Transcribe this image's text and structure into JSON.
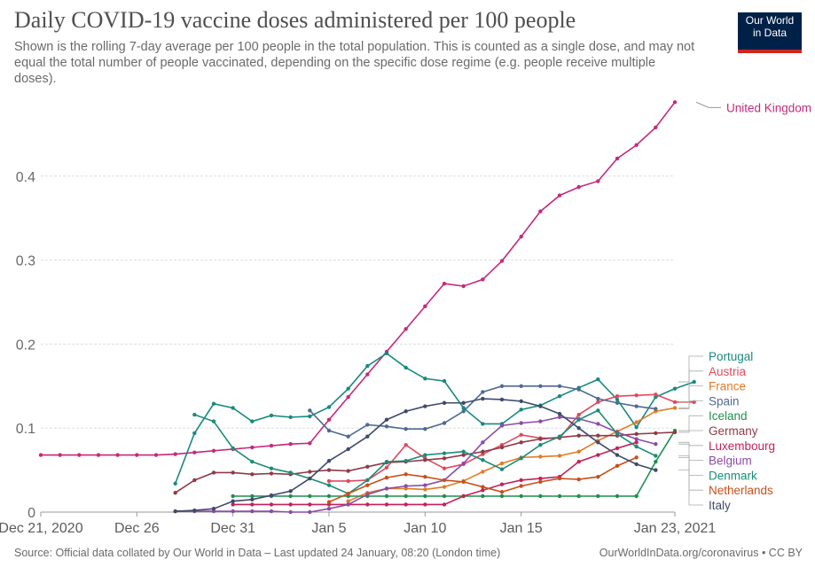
{
  "header": {
    "title": "Daily COVID-19 vaccine doses administered per 100 people",
    "subtitle": "Shown is the rolling 7-day average per 100 people in the total population. This is counted as a single dose, and may not equal the total number of people vaccinated, depending on the specific dose regime (e.g. people receive multiple doses).",
    "logo_line1": "Our World",
    "logo_line2": "in Data"
  },
  "footer": {
    "source": "Source: Official data collated by Our World in Data – Last updated 24 January, 08:20 (London time)",
    "credit": "OurWorldInData.org/coronavirus • CC BY"
  },
  "colors": {
    "logo_bg": "#002147",
    "logo_bar": "#ce261e",
    "grid": "#dddddd",
    "text": "#5b5b5b"
  },
  "chart_data": {
    "type": "line",
    "title": "Daily COVID-19 vaccine doses administered per 100 people",
    "xlabel": "",
    "ylabel": "",
    "x_ticks": [
      {
        "label": "Dec 21, 2020",
        "day": 0
      },
      {
        "label": "Dec 26",
        "day": 5
      },
      {
        "label": "Dec 31",
        "day": 10
      },
      {
        "label": "Jan 5",
        "day": 15
      },
      {
        "label": "Jan 10",
        "day": 20
      },
      {
        "label": "Jan 15",
        "day": 25
      },
      {
        "label": "Jan 23, 2021",
        "day": 33
      }
    ],
    "y_ticks": [
      0,
      0.1,
      0.2,
      0.3,
      0.4
    ],
    "y_tick_labels": [
      "0",
      "0.1",
      "0.2",
      "0.3",
      "0.4"
    ],
    "ylim": [
      0,
      0.5
    ],
    "xlim": [
      "2020-12-21",
      "2021-01-23"
    ],
    "grid": "horizontal dashed",
    "legend": "right (labels at line ends)",
    "series": [
      {
        "name": "United Kingdom",
        "color": "#c42a7c",
        "start": 0,
        "values": [
          0.068,
          0.068,
          0.068,
          0.068,
          0.068,
          0.068,
          0.068,
          0.069,
          0.071,
          0.073,
          0.075,
          0.077,
          0.079,
          0.081,
          0.082,
          0.11,
          0.137,
          0.164,
          0.191,
          0.218,
          0.245,
          0.272,
          0.269,
          0.277,
          0.299,
          0.328,
          0.358,
          0.377,
          0.387,
          0.394,
          0.421,
          0.437,
          0.458,
          0.488
        ]
      },
      {
        "name": "Portugal",
        "color": "#18897f",
        "start": 7,
        "values": [
          0.034,
          0.094,
          0.129,
          0.124,
          0.108,
          0.115,
          0.113,
          0.114,
          0.125,
          0.147,
          0.174,
          0.189,
          0.172,
          0.159,
          0.156,
          0.124,
          0.105,
          0.105,
          0.122,
          0.127,
          0.138,
          0.148,
          0.158,
          0.134,
          0.101,
          0.137,
          0.147,
          0.155
        ]
      },
      {
        "name": "Austria",
        "color": "#e0495e",
        "start": 15,
        "values": [
          0.037,
          0.037,
          0.038,
          0.053,
          0.08,
          0.064,
          0.052,
          0.057,
          0.069,
          0.08,
          0.092,
          0.088,
          0.088,
          0.116,
          0.131,
          0.138,
          0.139,
          0.14,
          0.131,
          0.131
        ]
      },
      {
        "name": "France",
        "color": "#e07b26",
        "start": 16,
        "values": [
          0.013,
          0.023,
          0.028,
          0.028,
          0.027,
          0.03,
          0.037,
          0.048,
          0.058,
          0.065,
          0.066,
          0.067,
          0.072,
          0.085,
          0.096,
          0.107,
          0.12,
          0.124
        ]
      },
      {
        "name": "Spain",
        "color": "#4f6a92",
        "start": 14,
        "values": [
          0.121,
          0.097,
          0.09,
          0.104,
          0.102,
          0.099,
          0.099,
          0.106,
          0.12,
          0.143,
          0.15,
          0.15,
          0.15,
          0.15,
          0.146,
          0.135,
          0.13,
          0.126,
          0.123
        ]
      },
      {
        "name": "Iceland",
        "color": "#1f8f4e",
        "start": 10,
        "values": [
          0.019,
          0.019,
          0.019,
          0.019,
          0.019,
          0.019,
          0.019,
          0.019,
          0.019,
          0.019,
          0.019,
          0.019,
          0.019,
          0.019,
          0.019,
          0.019,
          0.019,
          0.019,
          0.019,
          0.019,
          0.019,
          0.019,
          0.06,
          0.097
        ]
      },
      {
        "name": "Germany",
        "color": "#8e3b47",
        "start": 7,
        "values": [
          0.023,
          0.038,
          0.047,
          0.047,
          0.045,
          0.046,
          0.045,
          0.048,
          0.05,
          0.049,
          0.054,
          0.059,
          0.06,
          0.062,
          0.064,
          0.068,
          0.072,
          0.077,
          0.083,
          0.087,
          0.089,
          0.091,
          0.091,
          0.091,
          0.093,
          0.094,
          0.095
        ]
      },
      {
        "name": "Luxembourg",
        "color": "#c4215a",
        "start": 10,
        "values": [
          0.009,
          0.009,
          0.009,
          0.009,
          0.009,
          0.009,
          0.009,
          0.009,
          0.009,
          0.009,
          0.009,
          0.009,
          0.019,
          0.026,
          0.033,
          0.038,
          0.04,
          0.042,
          0.06,
          0.068,
          0.076,
          0.083
        ]
      },
      {
        "name": "Belgium",
        "color": "#8c4ba5",
        "start": 7,
        "values": [
          0.001,
          0.001,
          0.001,
          0.001,
          0.001,
          0.001,
          0.0,
          0.0,
          0.004,
          0.009,
          0.021,
          0.028,
          0.031,
          0.032,
          0.038,
          0.058,
          0.083,
          0.103,
          0.106,
          0.108,
          0.113,
          0.111,
          0.105,
          0.095,
          0.087,
          0.081
        ]
      },
      {
        "name": "Denmark",
        "color": "#1c8c76",
        "start": 8,
        "values": [
          0.116,
          0.108,
          0.076,
          0.06,
          0.052,
          0.047,
          0.04,
          0.032,
          0.022,
          0.038,
          0.06,
          0.061,
          0.068,
          0.07,
          0.072,
          0.062,
          0.051,
          0.064,
          0.08,
          0.09,
          0.11,
          0.121,
          0.093,
          0.078,
          0.067
        ]
      },
      {
        "name": "Netherlands",
        "color": "#c84f1c",
        "start": 15,
        "values": [
          0.012,
          0.022,
          0.032,
          0.041,
          0.045,
          0.042,
          0.038,
          0.036,
          0.03,
          0.024,
          0.031,
          0.036,
          0.04,
          0.039,
          0.042,
          0.055,
          0.065
        ]
      },
      {
        "name": "Italy",
        "color": "#3f4b6b",
        "start": 7,
        "values": [
          0.001,
          0.002,
          0.004,
          0.013,
          0.015,
          0.02,
          0.025,
          0.04,
          0.061,
          0.075,
          0.09,
          0.11,
          0.12,
          0.126,
          0.13,
          0.13,
          0.135,
          0.134,
          0.132,
          0.126,
          0.117,
          0.1,
          0.083,
          0.068,
          0.057,
          0.05
        ]
      }
    ]
  }
}
